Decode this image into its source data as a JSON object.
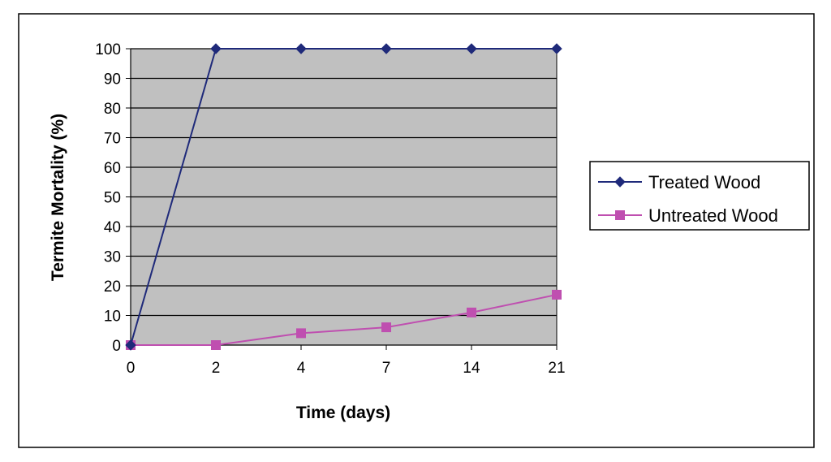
{
  "chart_data": {
    "type": "line",
    "title": "",
    "xlabel": "Time (days)",
    "ylabel": "Termite Mortality (%)",
    "categories": [
      "0",
      "2",
      "4",
      "7",
      "14",
      "21"
    ],
    "ylim": [
      0,
      100
    ],
    "yticks": [
      "0",
      "10",
      "20",
      "30",
      "40",
      "50",
      "60",
      "70",
      "80",
      "90",
      "100"
    ],
    "grid": true,
    "legend_position": "right",
    "plot_background": "#c0c0c0",
    "series": [
      {
        "name": "Treated Wood",
        "values": [
          0,
          100,
          100,
          100,
          100,
          100
        ],
        "color": "#1f2a7a",
        "marker": "diamond"
      },
      {
        "name": "Untreated Wood",
        "values": [
          0,
          0,
          4,
          6,
          11,
          17
        ],
        "color": "#bf4fb0",
        "marker": "square"
      }
    ]
  }
}
